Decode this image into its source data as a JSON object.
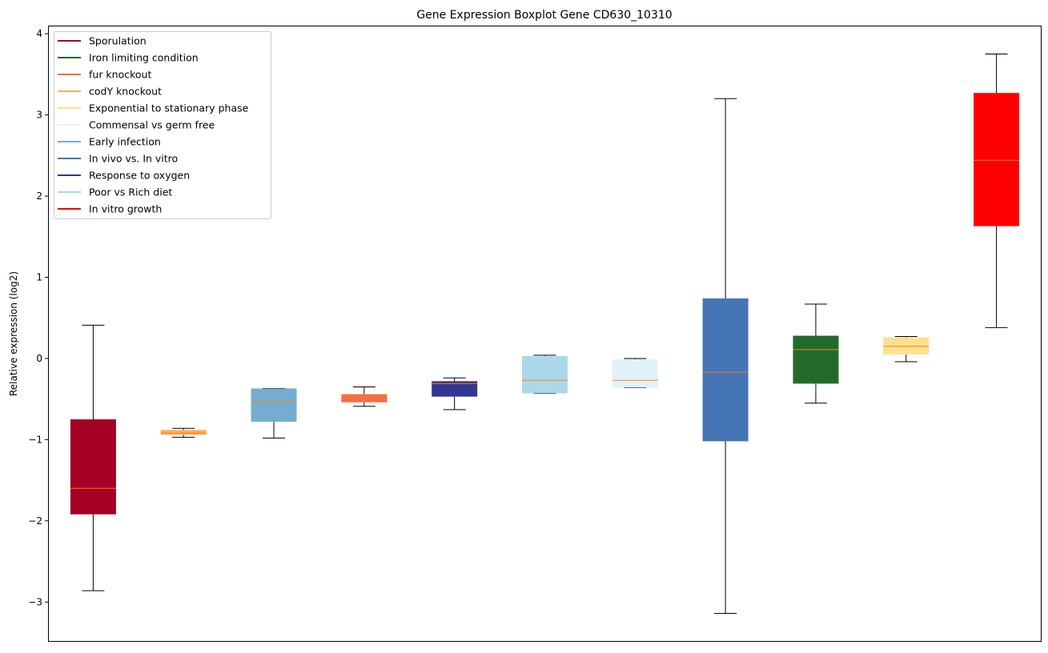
{
  "chart_data": {
    "type": "boxplot",
    "title": "Gene Expression Boxplot Gene CD630_10310",
    "xlabel": "",
    "ylabel": "Relative expression (log2)",
    "ylim": [
      -3.49,
      4.1
    ],
    "yticks": [
      -3,
      -2,
      -1,
      0,
      1,
      2,
      3,
      4
    ],
    "ytick_labels": [
      "−3",
      "−2",
      "−1",
      "0",
      "1",
      "2",
      "3",
      "4"
    ],
    "grid": false,
    "legend_position": "top-left",
    "median_color": "#ff7f0e",
    "legend": [
      {
        "label": "Sporulation",
        "color": "#a50026"
      },
      {
        "label": "Iron limiting condition",
        "color": "#236b2c"
      },
      {
        "label": "fur knockout",
        "color": "#f46d43"
      },
      {
        "label": "codY knockout",
        "color": "#fdae61"
      },
      {
        "label": "Exponential to stationary phase",
        "color": "#fee090"
      },
      {
        "label": "Commensal vs germ free",
        "color": "#e0f3f8"
      },
      {
        "label": "Early infection",
        "color": "#74add1"
      },
      {
        "label": "In vivo vs. In vitro",
        "color": "#4575b4"
      },
      {
        "label": "Response to oxygen",
        "color": "#313695"
      },
      {
        "label": "Poor vs Rich diet",
        "color": "#abd9e9"
      },
      {
        "label": "In vitro growth",
        "color": "#ff0000"
      }
    ],
    "boxes": [
      {
        "name": "Sporulation",
        "color": "#a50026",
        "whisker_low": -2.86,
        "q1": -1.92,
        "median": -1.6,
        "q3": -0.75,
        "whisker_high": 0.41
      },
      {
        "name": "codY knockout",
        "color": "#fdae61",
        "whisker_low": -0.97,
        "q1": -0.94,
        "median": -0.92,
        "q3": -0.88,
        "whisker_high": -0.86
      },
      {
        "name": "Early infection",
        "color": "#74add1",
        "whisker_low": -0.98,
        "q1": -0.78,
        "median": -0.52,
        "q3": -0.37,
        "whisker_high": -0.37
      },
      {
        "name": "fur knockout",
        "color": "#f46d43",
        "whisker_low": -0.59,
        "q1": -0.54,
        "median": -0.46,
        "q3": -0.44,
        "whisker_high": -0.35
      },
      {
        "name": "Response to oxygen",
        "color": "#313695",
        "whisker_low": -0.63,
        "q1": -0.47,
        "median": -0.31,
        "q3": -0.28,
        "whisker_high": -0.24
      },
      {
        "name": "Poor vs Rich diet",
        "color": "#abd9e9",
        "whisker_low": -0.43,
        "q1": -0.43,
        "median": -0.27,
        "q3": 0.03,
        "whisker_high": 0.04
      },
      {
        "name": "Commensal vs germ free",
        "color": "#e0f3f8",
        "whisker_low": -0.36,
        "q1": -0.36,
        "median": -0.27,
        "q3": -0.01,
        "whisker_high": 0.0
      },
      {
        "name": "In vivo vs. In vitro",
        "color": "#4575b4",
        "whisker_low": -3.14,
        "q1": -1.02,
        "median": -0.17,
        "q3": 0.74,
        "whisker_high": 3.2
      },
      {
        "name": "Iron limiting condition",
        "color": "#236b2c",
        "whisker_low": -0.55,
        "q1": -0.31,
        "median": 0.11,
        "q3": 0.28,
        "whisker_high": 0.67
      },
      {
        "name": "Exponential to stationary phase",
        "color": "#fee090",
        "whisker_low": -0.04,
        "q1": 0.05,
        "median": 0.15,
        "q3": 0.26,
        "whisker_high": 0.27
      },
      {
        "name": "In vitro growth",
        "color": "#ff0000",
        "whisker_low": 0.38,
        "q1": 1.63,
        "median": 2.44,
        "q3": 3.27,
        "whisker_high": 3.75
      }
    ]
  }
}
